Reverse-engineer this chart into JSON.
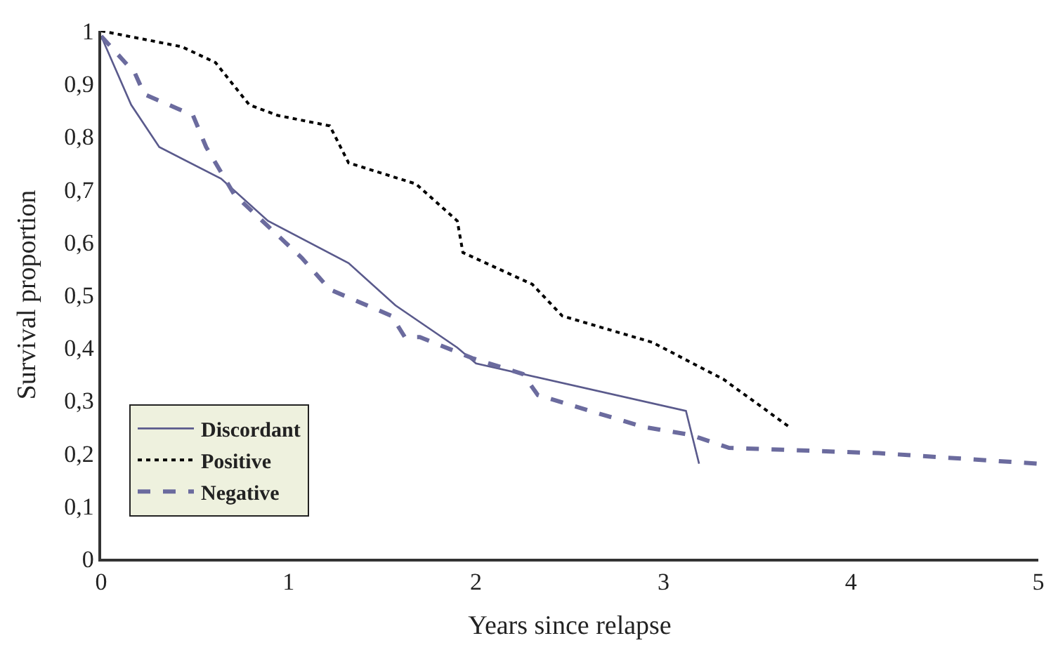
{
  "chart_data": {
    "type": "line",
    "xlabel": "Years since relapse",
    "ylabel": "Survival proportion",
    "xlim": [
      0,
      5
    ],
    "xticks": [
      0,
      1,
      2,
      3,
      4,
      5
    ],
    "ylim": [
      0,
      1
    ],
    "yticks": [
      0,
      {
        "value": 0.1,
        "label": "0,1"
      },
      {
        "value": 0.2,
        "label": "0,2"
      },
      {
        "value": 0.3,
        "label": "0,3"
      },
      {
        "value": 0.4,
        "label": "0,4"
      },
      {
        "value": 0.5,
        "label": "0,5"
      },
      {
        "value": 0.6,
        "label": "0,6"
      },
      {
        "value": 0.7,
        "label": "0,7"
      },
      {
        "value": 0.8,
        "label": "0,8"
      },
      {
        "value": 0.9,
        "label": "0,9"
      },
      1
    ],
    "legend": "bottom left",
    "marker": "none",
    "series": [
      {
        "name": "Discordant",
        "color": "#5a5a8c",
        "line_style": "solid",
        "x": [
          0,
          0.16,
          0.31,
          0.64,
          0.89,
          1.32,
          1.57,
          1.9,
          2.0,
          3.12,
          3.19
        ],
        "values": [
          0.99,
          0.86,
          0.78,
          0.72,
          0.64,
          0.56,
          0.48,
          0.4,
          0.37,
          0.28,
          0.18
        ]
      },
      {
        "name": "Positive",
        "color": "#000000",
        "line_style": "dotted",
        "x": [
          0,
          0.43,
          0.61,
          0.79,
          0.94,
          1.22,
          1.32,
          1.68,
          1.9,
          1.93,
          2.3,
          2.46,
          2.94,
          3.32,
          3.67
        ],
        "values": [
          1.0,
          0.97,
          0.94,
          0.86,
          0.84,
          0.82,
          0.75,
          0.71,
          0.64,
          0.58,
          0.52,
          0.46,
          0.41,
          0.34,
          0.25
        ]
      },
      {
        "name": "Negative",
        "color": "#6b6b9e",
        "line_style": "dashed",
        "x": [
          0,
          0.18,
          0.23,
          0.49,
          0.56,
          0.71,
          0.92,
          1.07,
          1.12,
          1.22,
          1.55,
          1.62,
          1.7,
          1.98,
          2.25,
          2.33,
          2.89,
          3.14,
          3.35,
          4.15,
          5.0
        ],
        "values": [
          0.99,
          0.92,
          0.88,
          0.84,
          0.78,
          0.69,
          0.62,
          0.57,
          0.55,
          0.51,
          0.46,
          0.42,
          0.42,
          0.38,
          0.35,
          0.31,
          0.25,
          0.235,
          0.21,
          0.2,
          0.18
        ]
      }
    ]
  }
}
